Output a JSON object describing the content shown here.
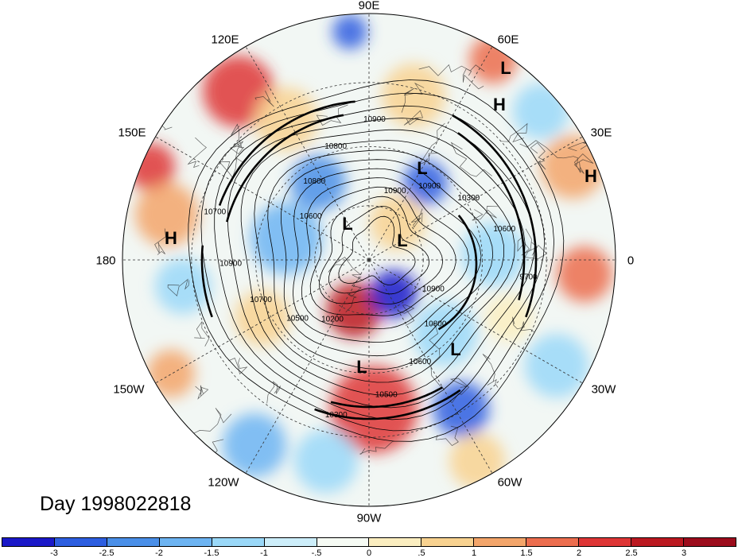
{
  "title": "Day 1998022818",
  "lon_labels": [
    {
      "text": "90E",
      "pos": "top"
    },
    {
      "text": "60E",
      "pos": "top-right-1"
    },
    {
      "text": "120E",
      "pos": "top-left-1"
    },
    {
      "text": "30E",
      "pos": "top-right-2"
    },
    {
      "text": "150E",
      "pos": "top-left-2"
    },
    {
      "text": "0",
      "pos": "right"
    },
    {
      "text": "180",
      "pos": "left"
    },
    {
      "text": "30W",
      "pos": "bottom-right-2"
    },
    {
      "text": "150W",
      "pos": "bottom-left-2"
    },
    {
      "text": "60W",
      "pos": "bottom-right-1"
    },
    {
      "text": "120W",
      "pos": "bottom-left-1"
    },
    {
      "text": "90W",
      "pos": "bottom"
    }
  ],
  "pressure_centers": [
    "L",
    "H",
    "H",
    "L",
    "L",
    "L",
    "H",
    "L",
    "L"
  ],
  "contour_labels": [
    "10900",
    "10900",
    "10300",
    "10600",
    "9700",
    "10900",
    "10800",
    "10600",
    "10500",
    "10300",
    "10200",
    "10500",
    "10700",
    "10900",
    "10700",
    "10600",
    "10800",
    "10800",
    "10900"
  ],
  "colorbar": {
    "ticks": [
      "-3",
      "-2.5",
      "-2",
      "-1.5",
      "-1",
      "-.5",
      "0",
      ".5",
      "1",
      "1.5",
      "2",
      "2.5",
      "3"
    ],
    "colors": [
      "#1a18c8",
      "#2d5ee0",
      "#4a8fe8",
      "#6db4f2",
      "#9ad8f8",
      "#cdeefa",
      "#f6fbf4",
      "#fbeec0",
      "#f8d290",
      "#f3a56a",
      "#ec6d4e",
      "#de3535",
      "#bb1820",
      "#9c0c1c"
    ]
  }
}
